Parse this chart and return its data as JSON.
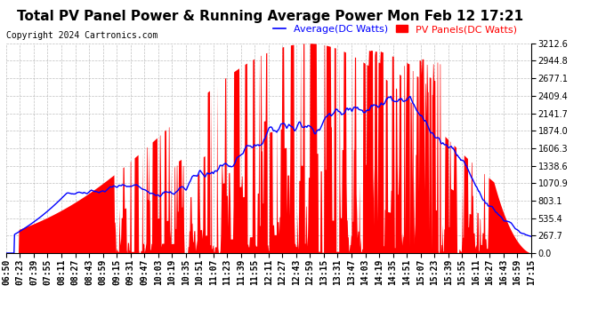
{
  "title": "Total PV Panel Power & Running Average Power Mon Feb 12 17:21",
  "copyright": "Copyright 2024 Cartronics.com",
  "legend_average": "Average(DC Watts)",
  "legend_pv": "PV Panels(DC Watts)",
  "y_max": 3212.6,
  "y_ticks": [
    0.0,
    267.7,
    535.4,
    803.1,
    1070.9,
    1338.6,
    1606.3,
    1874.0,
    2141.7,
    2409.4,
    2677.1,
    2944.8,
    3212.6
  ],
  "x_labels": [
    "06:50",
    "07:23",
    "07:39",
    "07:55",
    "08:11",
    "08:27",
    "08:43",
    "08:59",
    "09:15",
    "09:31",
    "09:47",
    "10:03",
    "10:19",
    "10:35",
    "10:51",
    "11:07",
    "11:23",
    "11:39",
    "11:55",
    "12:11",
    "12:27",
    "12:43",
    "12:59",
    "13:15",
    "13:31",
    "13:47",
    "14:03",
    "14:19",
    "14:35",
    "14:51",
    "15:07",
    "15:23",
    "15:39",
    "15:55",
    "16:11",
    "16:27",
    "16:43",
    "16:59",
    "17:15"
  ],
  "fill_color": "#ff0000",
  "line_color": "#0000ff",
  "background_color": "#ffffff",
  "grid_color": "#b0b0b0",
  "title_fontsize": 11,
  "copyright_fontsize": 7,
  "legend_fontsize": 8,
  "tick_fontsize": 7,
  "y_tick_fontsize": 7
}
